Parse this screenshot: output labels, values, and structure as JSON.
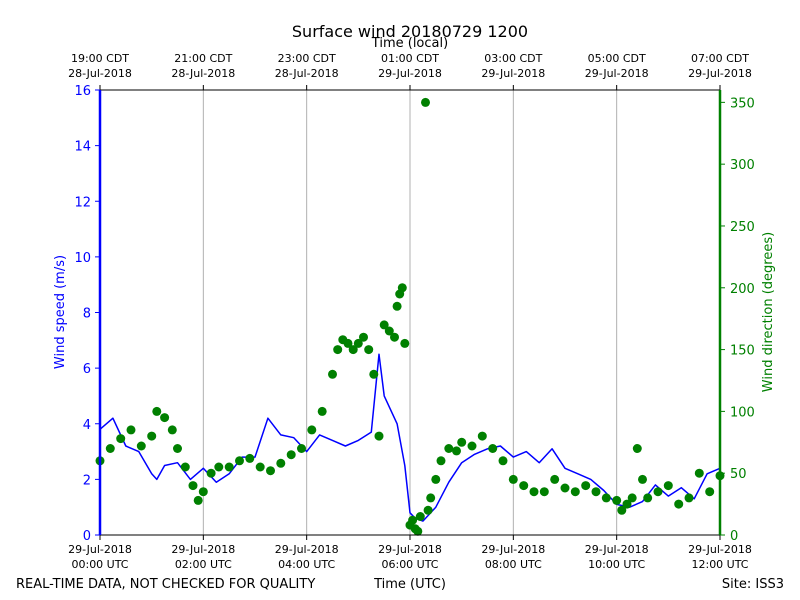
{
  "chart_data": {
    "type": "line+scatter",
    "title": "Surface wind 20180729 1200",
    "top_axis_label": "Time (local)",
    "xlabel": "Time (UTC)",
    "ylabel_left": "Wind speed (m/s)",
    "ylabel_right": "Wind direction (degrees)",
    "xlim_hours_utc": [
      0,
      12
    ],
    "ylim_left": [
      0,
      16
    ],
    "ylim_right": [
      0,
      360
    ],
    "grid": "vertical",
    "bottom_ticks": [
      {
        "h": 0,
        "l1": "29-Jul-2018",
        "l2": "00:00 UTC"
      },
      {
        "h": 2,
        "l1": "29-Jul-2018",
        "l2": "02:00 UTC"
      },
      {
        "h": 4,
        "l1": "29-Jul-2018",
        "l2": "04:00 UTC"
      },
      {
        "h": 6,
        "l1": "29-Jul-2018",
        "l2": "06:00 UTC"
      },
      {
        "h": 8,
        "l1": "29-Jul-2018",
        "l2": "08:00 UTC"
      },
      {
        "h": 10,
        "l1": "29-Jul-2018",
        "l2": "10:00 UTC"
      },
      {
        "h": 12,
        "l1": "29-Jul-2018",
        "l2": "12:00 UTC"
      }
    ],
    "top_ticks": [
      {
        "h": 0,
        "l1": "19:00 CDT",
        "l2": "28-Jul-2018"
      },
      {
        "h": 2,
        "l1": "21:00 CDT",
        "l2": "28-Jul-2018"
      },
      {
        "h": 4,
        "l1": "23:00 CDT",
        "l2": "28-Jul-2018"
      },
      {
        "h": 6,
        "l1": "01:00 CDT",
        "l2": "29-Jul-2018"
      },
      {
        "h": 8,
        "l1": "03:00 CDT",
        "l2": "29-Jul-2018"
      },
      {
        "h": 10,
        "l1": "05:00 CDT",
        "l2": "29-Jul-2018"
      },
      {
        "h": 12,
        "l1": "07:00 CDT",
        "l2": "29-Jul-2018"
      }
    ],
    "left_ticks": [
      0,
      2,
      4,
      6,
      8,
      10,
      12,
      14,
      16
    ],
    "right_ticks": [
      0,
      50,
      100,
      150,
      200,
      250,
      300,
      350
    ],
    "series": [
      {
        "name": "Wind speed",
        "axis": "left",
        "style": "line",
        "color": "#0000ff",
        "x_hours": [
          0,
          0.25,
          0.5,
          0.75,
          1,
          1.1,
          1.25,
          1.5,
          1.75,
          2,
          2.25,
          2.5,
          2.75,
          3,
          3.25,
          3.5,
          3.75,
          4,
          4.25,
          4.5,
          4.75,
          5,
          5.25,
          5.4,
          5.5,
          5.75,
          5.9,
          6,
          6.1,
          6.25,
          6.5,
          6.75,
          7,
          7.25,
          7.5,
          7.75,
          8,
          8.25,
          8.5,
          8.75,
          9,
          9.25,
          9.5,
          9.75,
          10,
          10.25,
          10.5,
          10.75,
          11,
          11.25,
          11.5,
          11.75,
          12
        ],
        "y": [
          3.8,
          4.2,
          3.2,
          3.0,
          2.2,
          2.0,
          2.5,
          2.6,
          2.0,
          2.4,
          1.9,
          2.2,
          2.8,
          2.8,
          4.2,
          3.6,
          3.5,
          3.0,
          3.6,
          3.4,
          3.2,
          3.4,
          3.7,
          6.5,
          5.0,
          4.0,
          2.5,
          0.8,
          0.6,
          0.5,
          1.0,
          1.9,
          2.6,
          2.9,
          3.1,
          3.2,
          2.8,
          3.0,
          2.6,
          3.1,
          2.4,
          2.2,
          2.0,
          1.6,
          1.1,
          1.0,
          1.2,
          1.8,
          1.4,
          1.7,
          1.3,
          2.2,
          2.4
        ]
      },
      {
        "name": "Wind direction",
        "axis": "right",
        "style": "scatter",
        "color": "#008000",
        "x_hours": [
          0,
          0.2,
          0.4,
          0.6,
          0.8,
          1,
          1.1,
          1.25,
          1.4,
          1.5,
          1.65,
          1.8,
          1.9,
          2,
          2.15,
          2.3,
          2.5,
          2.7,
          2.9,
          3.1,
          3.3,
          3.5,
          3.7,
          3.9,
          4.1,
          4.3,
          4.5,
          4.6,
          4.7,
          4.8,
          4.9,
          5,
          5.1,
          5.2,
          5.3,
          5.4,
          5.5,
          5.6,
          5.7,
          5.75,
          5.8,
          5.85,
          5.9,
          6,
          6.05,
          6.1,
          6.15,
          6.2,
          6.3,
          6.35,
          6.4,
          6.5,
          6.6,
          6.75,
          6.9,
          7,
          7.2,
          7.4,
          7.6,
          7.8,
          8,
          8.2,
          8.4,
          8.6,
          8.8,
          9,
          9.2,
          9.4,
          9.6,
          9.8,
          10,
          10.1,
          10.2,
          10.3,
          10.4,
          10.5,
          10.6,
          10.8,
          11,
          11.2,
          11.4,
          11.6,
          11.8,
          12
        ],
        "y": [
          60,
          70,
          78,
          85,
          72,
          80,
          100,
          95,
          85,
          70,
          55,
          40,
          28,
          35,
          50,
          55,
          55,
          60,
          62,
          55,
          52,
          58,
          65,
          70,
          85,
          100,
          130,
          150,
          158,
          155,
          150,
          155,
          160,
          150,
          130,
          80,
          170,
          165,
          160,
          185,
          195,
          200,
          155,
          8,
          12,
          5,
          3,
          15,
          350,
          20,
          30,
          45,
          60,
          70,
          68,
          75,
          72,
          80,
          70,
          60,
          45,
          40,
          35,
          35,
          45,
          38,
          35,
          40,
          35,
          30,
          28,
          20,
          25,
          30,
          70,
          45,
          30,
          35,
          40,
          25,
          30,
          50,
          35,
          48
        ]
      }
    ]
  },
  "footer": {
    "left": "REAL-TIME DATA, NOT CHECKED FOR QUALITY",
    "center": "Time (UTC)",
    "right": "Site: ISS3"
  }
}
